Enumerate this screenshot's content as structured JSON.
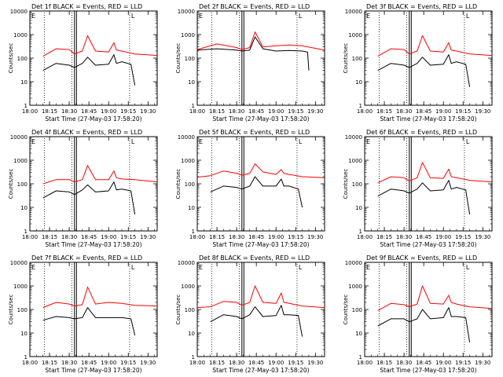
{
  "figure": {
    "background": "#ffffff",
    "ink": "#000000"
  },
  "common": {
    "xlabel": "Start Time (27-May-03 17:58:20)",
    "ylabel": "Counts/sec",
    "x_ticks": [
      "18:00",
      "18:15",
      "18:30",
      "18:45",
      "19:00",
      "19:15",
      "19:30"
    ],
    "y_ticks": [
      "1",
      "10",
      "100",
      "1000",
      "10000"
    ],
    "events_color": "#000000",
    "lld_color": "#ff0000",
    "dotted_line_times": [
      "18:11",
      "18:32",
      "19:16"
    ],
    "attenuator_block_time": "18:34",
    "corner_marks": {
      "left": "E",
      "right": "L"
    }
  },
  "chart_data": [
    {
      "type": "line",
      "title": "Det 1f BLACK = Events, RED = LLD",
      "x_label": "Start Time (27-May-03 17:58:20)",
      "y_label": "Counts/sec",
      "y_scale": "log",
      "ylim": [
        1,
        10000
      ],
      "xlim": [
        "18:00",
        "19:37"
      ],
      "series": [
        {
          "name": "Events",
          "color": "#000000",
          "x": [
            "18:10",
            "18:20",
            "18:30",
            "18:34",
            "18:40",
            "18:44",
            "18:50",
            "19:00",
            "19:04",
            "19:06",
            "19:10",
            "19:17",
            "19:20"
          ],
          "y": [
            30,
            60,
            50,
            40,
            60,
            110,
            50,
            55,
            140,
            60,
            70,
            55,
            7
          ]
        },
        {
          "name": "LLD",
          "color": "#ff0000",
          "x": [
            "18:10",
            "18:20",
            "18:30",
            "18:34",
            "18:40",
            "18:44",
            "18:50",
            "19:00",
            "19:04",
            "19:06",
            "19:10",
            "19:20",
            "19:37"
          ],
          "y": [
            120,
            250,
            230,
            150,
            200,
            900,
            200,
            180,
            450,
            220,
            200,
            150,
            130
          ]
        }
      ]
    },
    {
      "type": "line",
      "title": "Det 2f BLACK = Events, RED = LLD",
      "x_label": "Start Time (27-May-03 17:58:20)",
      "y_label": "Counts/sec",
      "y_scale": "log",
      "ylim": [
        1,
        10000
      ],
      "xlim": [
        "18:00",
        "19:37"
      ],
      "series": [
        {
          "name": "Events",
          "color": "#000000",
          "x": [
            "18:00",
            "18:15",
            "18:30",
            "18:34",
            "18:40",
            "18:44",
            "18:50",
            "19:00",
            "19:10",
            "19:20",
            "19:24",
            "19:25"
          ],
          "y": [
            220,
            250,
            220,
            200,
            220,
            800,
            250,
            200,
            210,
            200,
            180,
            30
          ]
        },
        {
          "name": "LLD",
          "color": "#ff0000",
          "x": [
            "18:00",
            "18:15",
            "18:30",
            "18:34",
            "18:40",
            "18:44",
            "18:50",
            "19:00",
            "19:10",
            "19:20",
            "19:37"
          ],
          "y": [
            230,
            400,
            280,
            230,
            280,
            1300,
            300,
            330,
            360,
            330,
            220
          ]
        }
      ]
    },
    {
      "type": "line",
      "title": "Det 3f BLACK = Events, RED = LLD",
      "x_label": "Start Time (27-May-03 17:58:20)",
      "y_label": "Counts/sec",
      "y_scale": "log",
      "ylim": [
        1,
        10000
      ],
      "xlim": [
        "18:00",
        "19:37"
      ],
      "series": [
        {
          "name": "Events",
          "color": "#000000",
          "x": [
            "18:10",
            "18:20",
            "18:30",
            "18:34",
            "18:40",
            "18:44",
            "18:50",
            "19:00",
            "19:04",
            "19:06",
            "19:10",
            "19:17",
            "19:20"
          ],
          "y": [
            30,
            60,
            50,
            40,
            60,
            110,
            50,
            55,
            140,
            60,
            70,
            55,
            6
          ]
        },
        {
          "name": "LLD",
          "color": "#ff0000",
          "x": [
            "18:10",
            "18:20",
            "18:30",
            "18:34",
            "18:40",
            "18:44",
            "18:50",
            "19:00",
            "19:04",
            "19:06",
            "19:10",
            "19:20",
            "19:37"
          ],
          "y": [
            120,
            250,
            230,
            150,
            200,
            900,
            200,
            180,
            450,
            220,
            200,
            150,
            130
          ]
        }
      ]
    },
    {
      "type": "line",
      "title": "Det 4f BLACK = Events, RED = LLD",
      "x_label": "Start Time (27-May-03 17:58:20)",
      "y_label": "Counts/sec",
      "y_scale": "log",
      "ylim": [
        1,
        10000
      ],
      "xlim": [
        "18:00",
        "19:37"
      ],
      "series": [
        {
          "name": "Events",
          "color": "#000000",
          "x": [
            "18:10",
            "18:20",
            "18:30",
            "18:34",
            "18:40",
            "18:44",
            "18:50",
            "19:00",
            "19:04",
            "19:06",
            "19:10",
            "19:17",
            "19:20"
          ],
          "y": [
            25,
            50,
            45,
            35,
            55,
            90,
            45,
            50,
            120,
            55,
            60,
            50,
            5
          ]
        },
        {
          "name": "LLD",
          "color": "#ff0000",
          "x": [
            "18:10",
            "18:20",
            "18:30",
            "18:34",
            "18:40",
            "18:44",
            "18:50",
            "19:00",
            "19:04",
            "19:06",
            "19:10",
            "19:20",
            "19:37"
          ],
          "y": [
            100,
            150,
            150,
            120,
            150,
            600,
            150,
            150,
            350,
            180,
            160,
            150,
            120
          ]
        }
      ]
    },
    {
      "type": "line",
      "title": "Det 5f BLACK = Events, RED = LLD",
      "x_label": "Start Time (27-May-03 17:58:20)",
      "y_label": "Counts/sec",
      "y_scale": "log",
      "ylim": [
        1,
        10000
      ],
      "xlim": [
        "18:00",
        "19:37"
      ],
      "series": [
        {
          "name": "Events",
          "color": "#000000",
          "x": [
            "18:10",
            "18:20",
            "18:30",
            "18:34",
            "18:40",
            "18:44",
            "18:50",
            "19:00",
            "19:04",
            "19:06",
            "19:10",
            "19:17",
            "19:20"
          ],
          "y": [
            45,
            80,
            70,
            60,
            80,
            200,
            80,
            80,
            160,
            80,
            80,
            60,
            10
          ]
        },
        {
          "name": "LLD",
          "color": "#ff0000",
          "x": [
            "18:00",
            "18:10",
            "18:20",
            "18:30",
            "18:34",
            "18:40",
            "18:44",
            "18:50",
            "19:00",
            "19:04",
            "19:06",
            "19:10",
            "19:20",
            "19:37"
          ],
          "y": [
            190,
            220,
            350,
            280,
            230,
            280,
            700,
            320,
            250,
            400,
            280,
            250,
            200,
            180
          ]
        }
      ]
    },
    {
      "type": "line",
      "title": "Det 6f BLACK = Events, RED = LLD",
      "x_label": "Start Time (27-May-03 17:58:20)",
      "y_label": "Counts/sec",
      "y_scale": "log",
      "ylim": [
        1,
        10000
      ],
      "xlim": [
        "18:00",
        "19:37"
      ],
      "series": [
        {
          "name": "Events",
          "color": "#000000",
          "x": [
            "18:10",
            "18:20",
            "18:30",
            "18:34",
            "18:40",
            "18:44",
            "18:50",
            "19:00",
            "19:04",
            "19:06",
            "19:10",
            "19:17",
            "19:20"
          ],
          "y": [
            30,
            60,
            50,
            40,
            60,
            110,
            50,
            55,
            140,
            60,
            70,
            55,
            5
          ]
        },
        {
          "name": "LLD",
          "color": "#ff0000",
          "x": [
            "18:10",
            "18:20",
            "18:30",
            "18:34",
            "18:40",
            "18:44",
            "18:50",
            "19:00",
            "19:04",
            "19:06",
            "19:10",
            "19:20",
            "19:37"
          ],
          "y": [
            110,
            200,
            180,
            130,
            180,
            800,
            180,
            170,
            420,
            200,
            180,
            140,
            120
          ]
        }
      ]
    },
    {
      "type": "line",
      "title": "Det 7f BLACK = Events, RED = LLD",
      "x_label": "Start Time (27-May-03 17:58:20)",
      "y_label": "Counts/sec",
      "y_scale": "log",
      "ylim": [
        1,
        10000
      ],
      "xlim": [
        "18:00",
        "19:37"
      ],
      "series": [
        {
          "name": "Events",
          "color": "#000000",
          "x": [
            "18:10",
            "18:20",
            "18:30",
            "18:34",
            "18:40",
            "18:44",
            "18:50",
            "19:00",
            "19:10",
            "19:17",
            "19:20"
          ],
          "y": [
            35,
            50,
            45,
            40,
            45,
            120,
            45,
            45,
            45,
            40,
            8
          ]
        },
        {
          "name": "LLD",
          "color": "#ff0000",
          "x": [
            "18:10",
            "18:20",
            "18:30",
            "18:34",
            "18:40",
            "18:44",
            "18:50",
            "19:00",
            "19:10",
            "19:20",
            "19:37"
          ],
          "y": [
            120,
            200,
            170,
            140,
            160,
            900,
            170,
            200,
            180,
            150,
            140
          ]
        }
      ]
    },
    {
      "type": "line",
      "title": "Det 8f BLACK = Events, RED = LLD",
      "x_label": "Start Time (27-May-03 17:58:20)",
      "y_label": "Counts/sec",
      "y_scale": "log",
      "ylim": [
        1,
        10000
      ],
      "xlim": [
        "18:00",
        "19:37"
      ],
      "series": [
        {
          "name": "Events",
          "color": "#000000",
          "x": [
            "18:10",
            "18:20",
            "18:30",
            "18:34",
            "18:40",
            "18:44",
            "18:50",
            "19:00",
            "19:04",
            "19:06",
            "19:10",
            "19:17",
            "19:20"
          ],
          "y": [
            30,
            60,
            50,
            40,
            60,
            130,
            50,
            55,
            150,
            60,
            60,
            55,
            7
          ]
        },
        {
          "name": "LLD",
          "color": "#ff0000",
          "x": [
            "18:00",
            "18:10",
            "18:20",
            "18:30",
            "18:34",
            "18:40",
            "18:44",
            "18:50",
            "19:00",
            "19:04",
            "19:06",
            "19:10",
            "19:20",
            "19:37"
          ],
          "y": [
            120,
            130,
            220,
            200,
            150,
            200,
            1000,
            200,
            180,
            500,
            200,
            180,
            140,
            120
          ]
        }
      ]
    },
    {
      "type": "line",
      "title": "Det 9f BLACK = Events, RED = LLD",
      "x_label": "Start Time (27-May-03 17:58:20)",
      "y_label": "Counts/sec",
      "y_scale": "log",
      "ylim": [
        1,
        10000
      ],
      "xlim": [
        "18:00",
        "19:37"
      ],
      "series": [
        {
          "name": "Events",
          "color": "#000000",
          "x": [
            "18:10",
            "18:20",
            "18:30",
            "18:34",
            "18:40",
            "18:44",
            "18:50",
            "19:00",
            "19:04",
            "19:06",
            "19:10",
            "19:17",
            "19:20"
          ],
          "y": [
            20,
            40,
            40,
            30,
            40,
            100,
            40,
            45,
            120,
            50,
            50,
            45,
            4
          ]
        },
        {
          "name": "LLD",
          "color": "#ff0000",
          "x": [
            "18:10",
            "18:20",
            "18:30",
            "18:34",
            "18:40",
            "18:44",
            "18:50",
            "19:00",
            "19:04",
            "19:06",
            "19:10",
            "19:20",
            "19:37"
          ],
          "y": [
            90,
            180,
            160,
            130,
            170,
            1000,
            180,
            170,
            400,
            200,
            170,
            130,
            110
          ]
        }
      ]
    }
  ]
}
